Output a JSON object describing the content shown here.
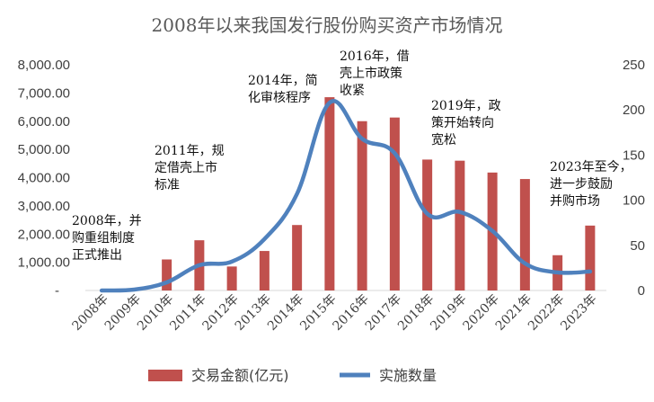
{
  "chart_data": {
    "type": "bar",
    "title": "2008年以来我国发行股份购买资产市场情况",
    "categories": [
      "2008年",
      "2009年",
      "2010年",
      "2011年",
      "2012年",
      "2013年",
      "2014年",
      "2015年",
      "2016年",
      "2017年",
      "2018年",
      "2019年",
      "2020年",
      "2021年",
      "2022年",
      "2023年"
    ],
    "y_left": {
      "ticks": [
        "-",
        "1,000.00",
        "2,000.00",
        "3,000.00",
        "4,000.00",
        "5,000.00",
        "6,000.00",
        "7,000.00",
        "8,000.00"
      ],
      "ylim": [
        0,
        8000
      ]
    },
    "y_right": {
      "ticks": [
        "0",
        "50",
        "100",
        "150",
        "200",
        "250"
      ],
      "ylim": [
        0,
        250
      ]
    },
    "series": [
      {
        "name": "交易金额(亿元)",
        "type": "bar",
        "axis": "left",
        "color": "#C0504D",
        "values": [
          0,
          0,
          1100,
          1780,
          850,
          1400,
          2320,
          6850,
          6000,
          6130,
          4640,
          4600,
          4180,
          3950,
          1250,
          2300
        ]
      },
      {
        "name": "实施数量",
        "type": "line",
        "axis": "right",
        "color": "#4F81BD",
        "values": [
          0,
          1,
          9,
          28,
          32,
          57,
          107,
          208,
          168,
          152,
          85,
          87,
          66,
          30,
          20,
          21
        ]
      }
    ],
    "annotations": [
      {
        "lines": [
          "2008年，并",
          "购重组制度",
          "正式推出"
        ]
      },
      {
        "lines": [
          "2011年，规",
          "定借壳上市",
          "标准"
        ]
      },
      {
        "lines": [
          "2014年，简",
          "化审核程序"
        ]
      },
      {
        "lines": [
          "2016年，借",
          "壳上市政策",
          "收紧"
        ]
      },
      {
        "lines": [
          "2019年，政",
          "策开始转向",
          "宽松"
        ]
      },
      {
        "lines": [
          "2023年至今，",
          "进一步鼓励",
          "并购市场"
        ]
      }
    ],
    "legend_position": "bottom"
  }
}
